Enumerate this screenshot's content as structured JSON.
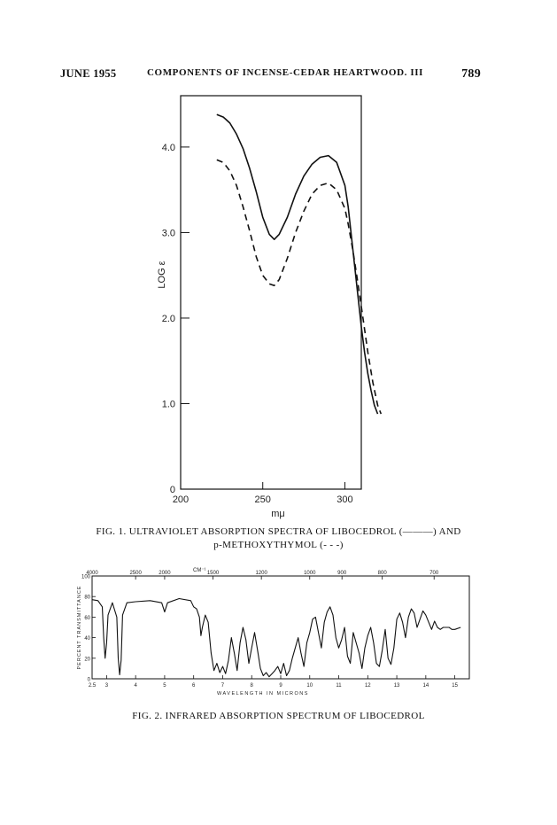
{
  "header": {
    "date": "JUNE 1955",
    "title": "COMPONENTS OF INCENSE-CEDAR HEARTWOOD. III",
    "page": "789"
  },
  "chart_data": [
    {
      "type": "line",
      "xlabel": "mμ",
      "ylabel": "LOG ε",
      "xlim": [
        200,
        310
      ],
      "ylim": [
        0,
        4.6
      ],
      "x_ticks": [
        200,
        250,
        300
      ],
      "x_tick_labels": [
        "200",
        "250",
        "300"
      ],
      "y_ticks": [
        0,
        1.0,
        2.0,
        3.0,
        4.0
      ],
      "y_tick_labels": [
        "0",
        "1.0",
        "2.0",
        "3.0",
        "4.0"
      ],
      "grid": false,
      "series": [
        {
          "style": "solid",
          "x": [
            222,
            226,
            230,
            234,
            238,
            242,
            246,
            250,
            254,
            257,
            260,
            265,
            270,
            275,
            280,
            285,
            290,
            295,
            300,
            302,
            304,
            306,
            308,
            310,
            312,
            314,
            316,
            318,
            320
          ],
          "y": [
            4.38,
            4.35,
            4.28,
            4.15,
            3.98,
            3.75,
            3.48,
            3.18,
            2.98,
            2.92,
            2.98,
            3.18,
            3.45,
            3.66,
            3.8,
            3.88,
            3.9,
            3.82,
            3.55,
            3.3,
            2.95,
            2.6,
            2.25,
            1.9,
            1.6,
            1.35,
            1.15,
            0.98,
            0.88
          ]
        },
        {
          "style": "dashed",
          "x": [
            222,
            226,
            230,
            234,
            238,
            242,
            246,
            250,
            254,
            257,
            260,
            265,
            270,
            275,
            280,
            285,
            290,
            295,
            300,
            302,
            305,
            308,
            311,
            314,
            317,
            320,
            322
          ],
          "y": [
            3.85,
            3.82,
            3.72,
            3.55,
            3.3,
            3.02,
            2.72,
            2.5,
            2.4,
            2.38,
            2.45,
            2.7,
            3.0,
            3.25,
            3.45,
            3.55,
            3.58,
            3.5,
            3.28,
            3.1,
            2.78,
            2.4,
            2.0,
            1.6,
            1.25,
            0.98,
            0.88
          ]
        }
      ]
    },
    {
      "type": "line",
      "xlabel": "WAVELENGTH IN MICRONS",
      "ylabel": "PERCENT TRANSMITTANCE",
      "top_axis_label": "CM⁻¹",
      "xlim": [
        2.5,
        15.5
      ],
      "ylim": [
        0,
        100
      ],
      "x_ticks": [
        2.5,
        3,
        4,
        5,
        6,
        7,
        8,
        9,
        10,
        11,
        12,
        13,
        14,
        15
      ],
      "x_tick_labels": [
        "2.5",
        "3",
        "4",
        "5",
        "6",
        "7",
        "8",
        "9",
        "10",
        "11",
        "12",
        "13",
        "14",
        "15"
      ],
      "top_tick_labels": [
        "4000",
        "2500",
        "2000",
        "1500",
        "1200",
        "1000",
        "900",
        "800",
        "700"
      ],
      "y_ticks": [
        0,
        20,
        40,
        60,
        80,
        100
      ],
      "y_tick_labels": [
        "0",
        "20",
        "40",
        "60",
        "80",
        "100"
      ],
      "series": [
        {
          "style": "solid",
          "x": [
            2.5,
            2.7,
            2.85,
            2.9,
            2.95,
            3.0,
            3.05,
            3.2,
            3.35,
            3.4,
            3.45,
            3.5,
            3.55,
            3.7,
            4.0,
            4.5,
            4.9,
            5.0,
            5.1,
            5.5,
            5.9,
            6.0,
            6.1,
            6.2,
            6.25,
            6.3,
            6.4,
            6.5,
            6.6,
            6.7,
            6.8,
            6.9,
            7.0,
            7.1,
            7.2,
            7.3,
            7.4,
            7.5,
            7.6,
            7.7,
            7.8,
            7.9,
            8.0,
            8.1,
            8.2,
            8.3,
            8.4,
            8.5,
            8.6,
            8.7,
            8.8,
            8.9,
            9.0,
            9.1,
            9.2,
            9.3,
            9.4,
            9.5,
            9.6,
            9.7,
            9.8,
            9.9,
            10.0,
            10.1,
            10.2,
            10.3,
            10.4,
            10.5,
            10.6,
            10.7,
            10.8,
            10.9,
            11.0,
            11.1,
            11.2,
            11.3,
            11.4,
            11.5,
            11.6,
            11.7,
            11.8,
            11.9,
            12.0,
            12.1,
            12.2,
            12.3,
            12.4,
            12.5,
            12.6,
            12.7,
            12.8,
            12.9,
            13.0,
            13.1,
            13.2,
            13.3,
            13.4,
            13.5,
            13.6,
            13.7,
            13.8,
            13.9,
            14.0,
            14.1,
            14.2,
            14.3,
            14.4,
            14.5,
            14.6,
            14.7,
            14.8,
            14.9,
            15.0,
            15.2
          ],
          "y": [
            77,
            76,
            70,
            40,
            20,
            35,
            62,
            74,
            60,
            20,
            4,
            18,
            62,
            74,
            75,
            76,
            74,
            65,
            74,
            78,
            76,
            70,
            68,
            60,
            42,
            50,
            62,
            55,
            25,
            8,
            15,
            6,
            12,
            5,
            18,
            40,
            25,
            8,
            35,
            50,
            38,
            15,
            30,
            45,
            28,
            10,
            3,
            6,
            2,
            5,
            8,
            12,
            5,
            15,
            3,
            8,
            20,
            30,
            40,
            25,
            12,
            35,
            45,
            58,
            60,
            45,
            30,
            55,
            65,
            70,
            62,
            40,
            30,
            38,
            50,
            22,
            15,
            45,
            35,
            25,
            10,
            30,
            42,
            50,
            35,
            15,
            12,
            28,
            48,
            20,
            14,
            30,
            58,
            64,
            55,
            40,
            60,
            68,
            64,
            50,
            58,
            66,
            62,
            55,
            48,
            56,
            50,
            48,
            50,
            50,
            50,
            48,
            48,
            50
          ]
        }
      ]
    }
  ],
  "captions": {
    "fig1_line1": "FIG. 1. ULTRAVIOLET ABSORPTION SPECTRA OF LIBOCEDROL (———) AND",
    "fig1_line2": "p-METHOXYTHYMOL (- - -)",
    "fig2": "FIG. 2. INFRARED ABSORPTION SPECTRUM OF LIBOCEDROL"
  }
}
